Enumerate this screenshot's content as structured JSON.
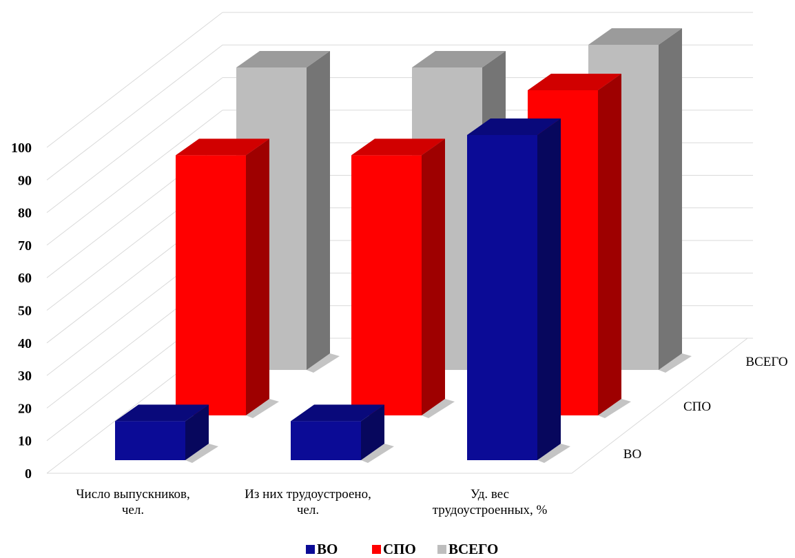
{
  "chart_data": {
    "type": "bar",
    "categories": [
      "Число выпускников, чел.",
      "Из них трудоустроено, чел.",
      "Уд. вес трудоустроенных, %"
    ],
    "category_lines": [
      [
        "Число выпускников,",
        "чел."
      ],
      [
        "Из них трудоустроено,",
        "чел."
      ],
      [
        "Уд. вес",
        "трудоустроенных, %"
      ]
    ],
    "series": [
      {
        "name": "ВО",
        "values": [
          12,
          12,
          100
        ],
        "color": "#0b0b96"
      },
      {
        "name": "СПО",
        "values": [
          80,
          80,
          100
        ],
        "color": "#ff0000"
      },
      {
        "name": "ВСЕГО",
        "values": [
          93,
          93,
          100
        ],
        "color": "#bdbdbd"
      }
    ],
    "y_ticks": [
      "0",
      "10",
      "20",
      "30",
      "40",
      "50",
      "60",
      "70",
      "80",
      "90",
      "100"
    ],
    "ylim": [
      0,
      100
    ],
    "legend_position": "bottom-center",
    "grid": true,
    "view": "3d-clustered-depth"
  }
}
